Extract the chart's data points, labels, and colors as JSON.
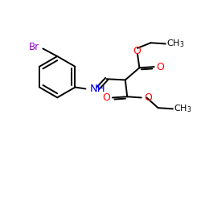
{
  "bg_color": "#ffffff",
  "atom_colors": {
    "Br": "#9400D3",
    "N": "#0000FF",
    "O": "#FF0000",
    "C": "#000000"
  },
  "bond_color": "#000000",
  "bond_lw": 1.4,
  "figsize": [
    2.5,
    2.5
  ],
  "dpi": 100,
  "xlim": [
    0,
    10
  ],
  "ylim": [
    0,
    10
  ]
}
